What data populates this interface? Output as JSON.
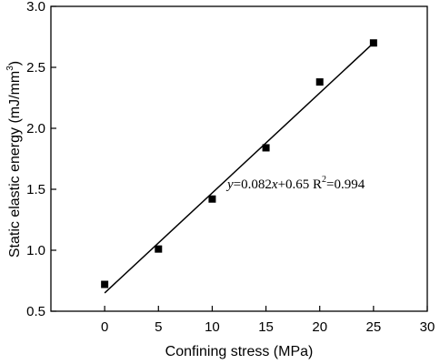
{
  "chart_data": {
    "type": "scatter",
    "xlabel": "Confining stress (MPa)",
    "ylabel_main": "Static elastic energy (mJ/mm",
    "ylabel_sup": "3",
    "ylabel_close": ")",
    "xlim": [
      -5,
      30
    ],
    "ylim": [
      0.5,
      3.0
    ],
    "xticks": [
      0,
      5,
      10,
      15,
      20,
      25,
      30
    ],
    "yticks": [
      0.5,
      1.0,
      1.5,
      2.0,
      2.5,
      3.0
    ],
    "xtick_labels": [
      "0",
      "5",
      "10",
      "15",
      "20",
      "25",
      "30"
    ],
    "ytick_labels": [
      "0.5",
      "1.0",
      "1.5",
      "2.0",
      "2.5",
      "3.0"
    ],
    "series": [
      {
        "x": [
          0,
          5,
          10,
          15,
          20,
          25
        ],
        "y": [
          0.72,
          1.01,
          1.42,
          1.84,
          2.38,
          2.7
        ]
      }
    ],
    "fit": {
      "slope": 0.082,
      "intercept": 0.65,
      "x_range": [
        0,
        25
      ]
    },
    "annotation": {
      "y": "y",
      "eq": "=0.082",
      "x": "x",
      "rest": "+0.65 R",
      "sup": "2",
      "r2": "=0.994"
    },
    "grid": false,
    "legend": "none"
  }
}
